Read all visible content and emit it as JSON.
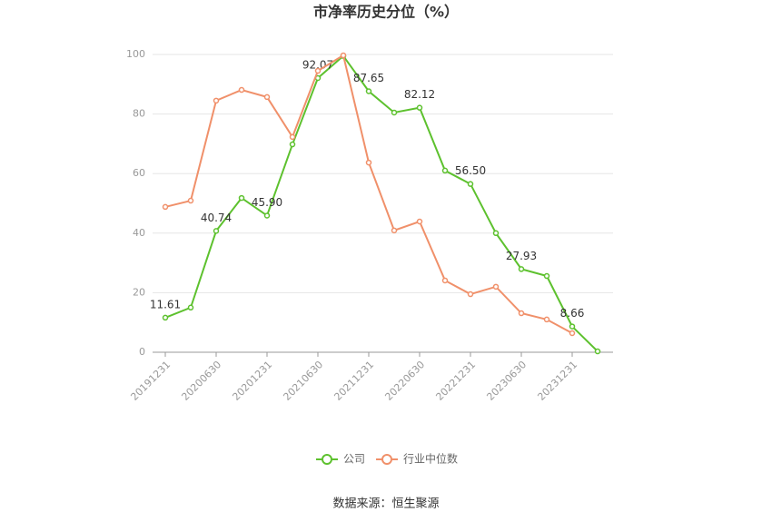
{
  "chart_data": {
    "type": "line",
    "title": "市净率历史分位（%）",
    "source": "数据来源：恒生聚源",
    "categories": [
      "20191231",
      null,
      "20200630",
      null,
      "20201231",
      null,
      "20210630",
      null,
      "20211231",
      null,
      "20220630",
      null,
      "20221231",
      null,
      "20230630",
      null,
      "20231231",
      null
    ],
    "series": [
      {
        "name": "公司",
        "color": "#5dc12e",
        "values": [
          11.61,
          15,
          40.74,
          51.8,
          45.9,
          69.8,
          92.07,
          99.5,
          87.65,
          80.5,
          82.12,
          61,
          56.5,
          40,
          27.93,
          25.6,
          8.66,
          0.3
        ],
        "value_labels": [
          "11.61",
          null,
          "40.74",
          null,
          "45.90",
          null,
          "92.07",
          null,
          "87.65",
          null,
          "82.12",
          null,
          "56.50",
          null,
          "27.93",
          null,
          "8.66",
          null
        ]
      },
      {
        "name": "行业中位数",
        "color": "#f0906a",
        "values": [
          48.8,
          50.9,
          84.5,
          88.1,
          85.7,
          72.3,
          94.5,
          99.7,
          63.7,
          40.9,
          43.9,
          24.1,
          19.5,
          22,
          13.1,
          11,
          6.4,
          null
        ]
      }
    ],
    "ylim": [
      0,
      100
    ],
    "yticks": [
      0,
      20,
      40,
      60,
      80,
      100
    ],
    "grid": true,
    "legend": "bottom"
  }
}
